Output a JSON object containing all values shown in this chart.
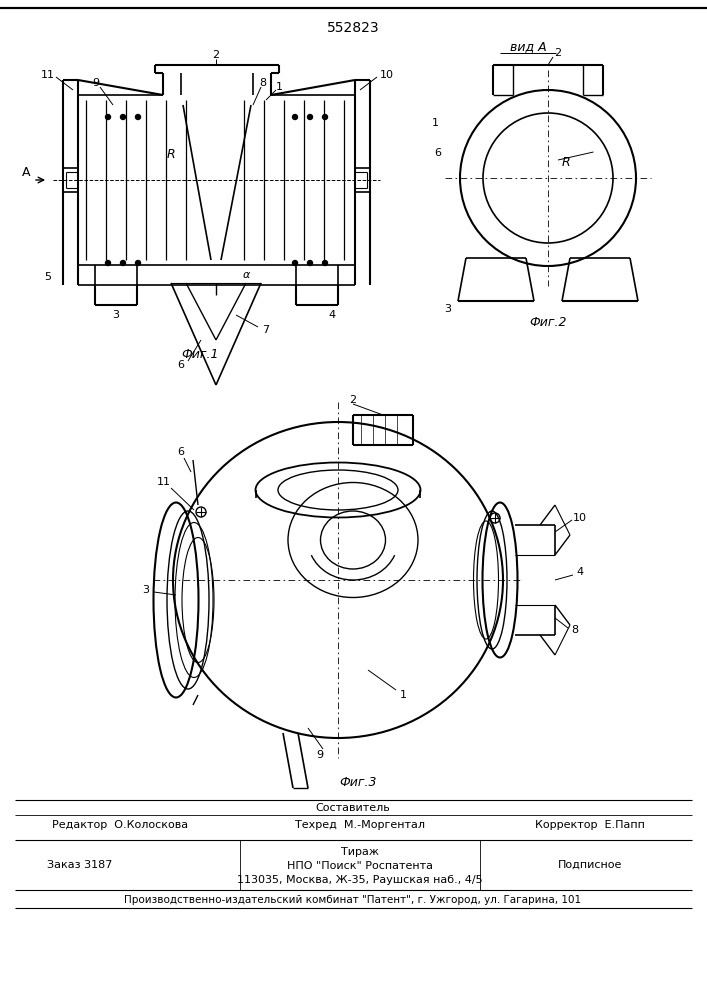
{
  "title_number": "552823",
  "fig1_label": "Фиг.1",
  "fig2_label": "Фиг.2",
  "fig3_label": "Фиг.3",
  "view_label": "вид А",
  "editor_line": "Редактор  О.Колоскова",
  "composer_line": "Составитель",
  "techred_line": "Техред  М.-Моргентал",
  "corrector_line": "Корректор  Е.Папп",
  "order_line": "Заказ 3187",
  "tirazh_label": "Тираж",
  "podpisnoe_label": "Подписное",
  "npo_line": "НПО \"Поиск\" Роспатента",
  "address_line": "113035, Москва, Ж-35, Раушская наб., 4/5",
  "bottom_line": "Производственно-издательский комбинат \"Патент\", г. Ужгород, ул. Гагарина, 101",
  "bg_color": "#ffffff",
  "lc": "#000000"
}
